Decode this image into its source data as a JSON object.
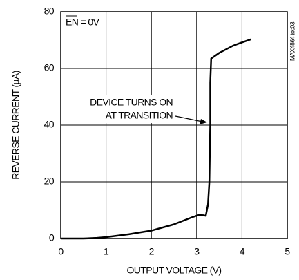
{
  "chart_data": {
    "type": "line",
    "xlabel": "OUTPUT VOLTAGE (V)",
    "ylabel": "REVERSE CURRENT (µA)",
    "annotations": [
      "EN = 0V",
      "DEVICE TURNS ON",
      "AT TRANSITION",
      "MAX4864 toc03"
    ],
    "x": [
      0,
      0.5,
      0.8,
      1,
      1.5,
      2,
      2.5,
      2.9,
      3.05,
      3.15,
      3.2,
      3.25,
      3.28,
      3.3,
      3.3,
      3.32,
      3.5,
      3.8,
      4.0,
      4.2
    ],
    "series": [
      {
        "name": "Reverse current",
        "color": "#000000",
        "values": [
          0,
          0,
          0.2,
          0.5,
          1.5,
          2.8,
          5,
          7.5,
          8.3,
          8.2,
          8,
          12,
          20,
          40,
          55,
          63.5,
          65.5,
          68,
          69.2,
          70.3
        ]
      }
    ],
    "xlim": [
      0,
      5
    ],
    "xticks": [
      0,
      1,
      2,
      3,
      4,
      5
    ],
    "ylim": [
      0,
      80
    ],
    "yticks": [
      0,
      20,
      40,
      60,
      80
    ],
    "grid": true
  }
}
